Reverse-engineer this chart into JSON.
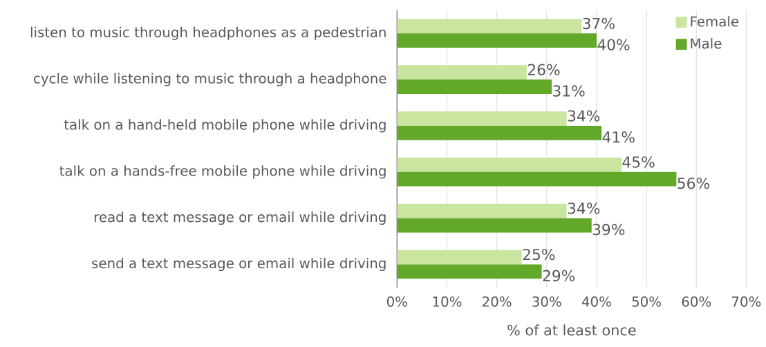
{
  "chart_data": {
    "type": "bar",
    "orientation": "horizontal",
    "xlabel": "% of at least once",
    "categories": [
      "listen to music through headphones as a pedestrian",
      "cycle while listening to music through a headphone",
      "talk on a hand-held mobile phone while driving",
      "talk on a hands-free mobile phone while driving",
      "read a text message or email while driving",
      "send a text message or email while driving"
    ],
    "series": [
      {
        "name": "Female",
        "color": "#c9e5a0",
        "values": [
          37,
          26,
          34,
          45,
          34,
          25
        ],
        "value_labels": [
          "37%",
          "26%",
          "34%",
          "45%",
          "34%",
          "25%"
        ]
      },
      {
        "name": "Male",
        "color": "#62a829",
        "values": [
          40,
          31,
          41,
          56,
          39,
          29
        ],
        "value_labels": [
          "40%",
          "31%",
          "41%",
          "56%",
          "39%",
          "29%"
        ]
      }
    ],
    "xlim": [
      0,
      70
    ],
    "xticks": [
      {
        "value": 0,
        "label": "0%"
      },
      {
        "value": 10,
        "label": "10%"
      },
      {
        "value": 20,
        "label": "20%"
      },
      {
        "value": 30,
        "label": "30%"
      },
      {
        "value": 40,
        "label": "40%"
      },
      {
        "value": 50,
        "label": "50%"
      },
      {
        "value": 60,
        "label": "60%"
      },
      {
        "value": 70,
        "label": "70%"
      }
    ],
    "grid": "x",
    "legend": "top right"
  }
}
